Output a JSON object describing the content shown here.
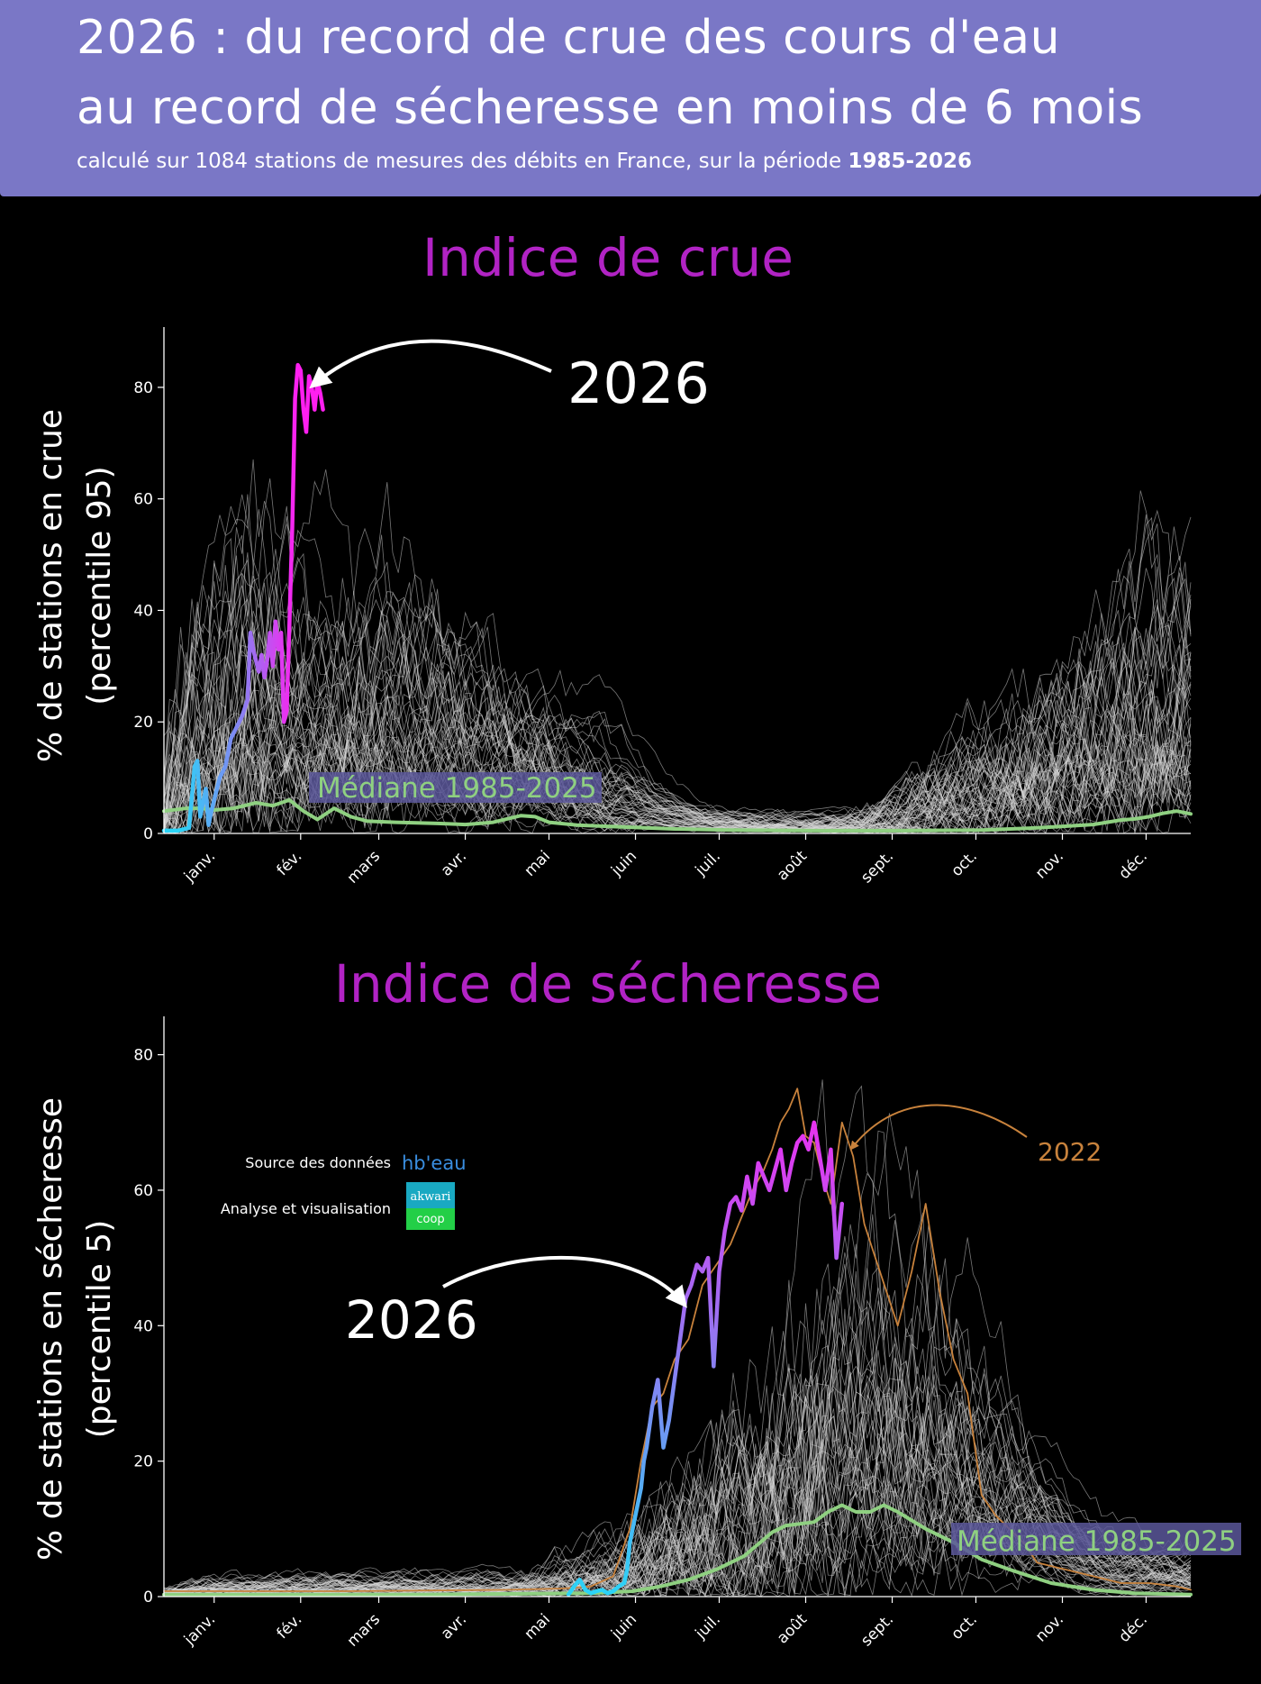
{
  "header": {
    "title_line1": "2026 : du record de crue des cours d'eau",
    "title_line2": "au record de sécheresse en moins de 6 mois",
    "subtitle_prefix": "calculé sur 1084 stations de mesures des débits en France, sur la période ",
    "subtitle_period": "1985-2026"
  },
  "credits": {
    "source_label": "Source des données",
    "source_logo": "hb'eau",
    "analysis_label": "Analyse et visualisation",
    "analysis_logo_top": "akwari",
    "analysis_logo_bottom": "coop"
  },
  "colors": {
    "background": "#000000",
    "header": "#7a77c6",
    "panel_title": "#b123c4",
    "historical_years": "#d9d9d9",
    "median": "#8fd081",
    "year_2022": "#c8823c",
    "year_2026_start": "#2ad4f7",
    "year_2026_mid": "#8e7cf2",
    "year_2026_end": "#ff1ff0"
  },
  "chart_data": [
    {
      "type": "line",
      "title": "Indice de crue",
      "ylabel_line1": "% de stations en crue",
      "ylabel_line2": "(percentile 95)",
      "x_unit": "day of year",
      "months": [
        "janv.",
        "févr.",
        "mars",
        "avr.",
        "mai",
        "juin",
        "juil.",
        "août",
        "sept.",
        "oct.",
        "nov.",
        "déc."
      ],
      "month_tick_labels": [
        "janv.",
        "fév.",
        "mars",
        "avr.",
        "mai",
        "juin",
        "juil.",
        "août",
        "sept.",
        "oct.",
        "nov.",
        "déc."
      ],
      "month_tick_days": [
        15,
        46,
        74,
        105,
        135,
        166,
        196,
        227,
        258,
        288,
        319,
        349
      ],
      "xlim": [
        -3,
        365
      ],
      "ylim": [
        0,
        90
      ],
      "yticks": [
        0,
        20,
        40,
        60,
        80
      ],
      "grid": false,
      "series": [
        {
          "name": "Médiane 1985-2025",
          "role": "median",
          "x": [
            -3,
            5,
            10,
            15,
            22,
            30,
            36,
            42,
            47,
            52,
            58,
            64,
            70,
            80,
            95,
            105,
            115,
            125,
            130,
            135,
            145,
            160,
            180,
            200,
            230,
            260,
            290,
            310,
            320,
            330,
            340,
            345,
            350,
            355,
            360,
            365
          ],
          "y": [
            4,
            4.5,
            4.5,
            4.2,
            4.5,
            5.5,
            5.0,
            6.0,
            4.0,
            2.5,
            4.5,
            3.0,
            2.2,
            2.0,
            1.8,
            1.6,
            2.0,
            3.2,
            3.0,
            2.0,
            1.5,
            1.2,
            0.8,
            0.6,
            0.5,
            0.5,
            0.6,
            1.0,
            1.3,
            1.6,
            2.4,
            2.6,
            3.0,
            3.6,
            4.0,
            3.5
          ]
        },
        {
          "name": "2026",
          "role": "current",
          "x": [
            -3,
            2,
            6,
            8,
            9,
            10,
            12,
            13,
            14,
            15,
            17,
            19,
            21,
            23,
            25,
            27,
            28,
            29,
            31,
            32,
            33,
            34,
            35,
            36,
            37,
            38,
            39,
            40,
            41,
            42,
            43,
            44,
            45,
            46,
            47,
            48,
            49,
            50,
            51,
            52,
            53,
            54
          ],
          "y": [
            0.5,
            0.5,
            1.0,
            12.0,
            13.0,
            3.0,
            8.0,
            1.5,
            4.0,
            6.0,
            10.0,
            12.0,
            17.0,
            19.0,
            21.0,
            24.0,
            36.0,
            33.0,
            29.0,
            32.0,
            28.0,
            31.0,
            36.0,
            30.0,
            38.0,
            33.0,
            36.0,
            20.0,
            22.0,
            38.0,
            55.0,
            78.0,
            84.0,
            83.0,
            76.0,
            72.0,
            82.0,
            80.0,
            76.0,
            81.0,
            79.0,
            76.0
          ]
        }
      ],
      "annotations": [
        {
          "text": "2026"
        },
        {
          "text": "Médiane 1985-2025"
        }
      ]
    },
    {
      "type": "line",
      "title": "Indice de sécheresse",
      "ylabel_line1": "% de stations en sécheresse",
      "ylabel_line2": "(percentile 5)",
      "x_unit": "day of year",
      "months": [
        "janv.",
        "févr.",
        "mars",
        "avr.",
        "mai",
        "juin",
        "juil.",
        "août",
        "sept.",
        "oct.",
        "nov.",
        "déc."
      ],
      "month_tick_labels": [
        "janv.",
        "fév.",
        "mars",
        "avr.",
        "mai",
        "juin",
        "juil.",
        "août",
        "sept.",
        "oct.",
        "nov.",
        "déc."
      ],
      "month_tick_days": [
        15,
        46,
        74,
        105,
        135,
        166,
        196,
        227,
        258,
        288,
        319,
        349
      ],
      "xlim": [
        -3,
        365
      ],
      "ylim": [
        0,
        85
      ],
      "yticks": [
        0,
        20,
        40,
        60,
        80
      ],
      "grid": false,
      "series": [
        {
          "name": "Médiane 1985-2025",
          "role": "median",
          "x": [
            -3,
            30,
            60,
            90,
            120,
            150,
            165,
            175,
            185,
            195,
            205,
            215,
            220,
            230,
            235,
            240,
            245,
            250,
            255,
            260,
            270,
            280,
            290,
            300,
            315,
            330,
            345,
            365
          ],
          "y": [
            0.3,
            0.3,
            0.3,
            0.3,
            0.4,
            0.5,
            0.8,
            1.5,
            2.5,
            4.0,
            6.0,
            9.5,
            10.5,
            11.0,
            12.5,
            13.5,
            12.5,
            12.5,
            13.5,
            12.5,
            10.0,
            8.0,
            5.5,
            4.0,
            2.0,
            1.0,
            0.5,
            0.3
          ]
        },
        {
          "name": "2022",
          "role": "highlight",
          "x": [
            -3,
            60,
            120,
            140,
            150,
            158,
            164,
            168,
            172,
            176,
            180,
            185,
            190,
            195,
            200,
            205,
            208,
            212,
            215,
            218,
            221,
            224,
            227,
            230,
            233,
            236,
            240,
            244,
            248,
            252,
            256,
            260,
            265,
            270,
            275,
            280,
            285,
            290,
            295,
            300,
            305,
            310,
            320,
            330,
            340,
            350,
            360,
            365
          ],
          "y": [
            0.8,
            0.8,
            1.0,
            1.2,
            1.5,
            3.0,
            10.0,
            20.0,
            28.0,
            30.0,
            35.0,
            38.0,
            46.0,
            49.0,
            52.0,
            57.0,
            60.0,
            63.0,
            66.0,
            70.0,
            72.0,
            75.0,
            68.0,
            67.0,
            62.0,
            58.0,
            70.0,
            65.0,
            55.0,
            50.0,
            45.0,
            40.0,
            48.0,
            58.0,
            45.0,
            35.0,
            30.0,
            15.0,
            12.0,
            10.0,
            8.0,
            5.0,
            4.0,
            3.0,
            2.0,
            2.0,
            1.5,
            1.0
          ]
        },
        {
          "name": "2026",
          "role": "current",
          "x": [
            142,
            144,
            146,
            148,
            150,
            152,
            154,
            156,
            158,
            160,
            162,
            163,
            164,
            166,
            168,
            169,
            170,
            172,
            174,
            176,
            178,
            180,
            182,
            184,
            186,
            188,
            190,
            192,
            194,
            196,
            198,
            200,
            202,
            204,
            206,
            208,
            210,
            212,
            214,
            216,
            218,
            220,
            222,
            224,
            226,
            228,
            230,
            232,
            234,
            236,
            238,
            240
          ],
          "y": [
            0.3,
            1.5,
            2.5,
            1.0,
            0.5,
            0.8,
            1.0,
            0.5,
            0.8,
            1.5,
            2.0,
            4.0,
            8.0,
            12.0,
            16.0,
            20.0,
            22.0,
            28.0,
            32.0,
            22.0,
            26.0,
            32.0,
            38.0,
            44.0,
            46.0,
            49.0,
            48.0,
            50.0,
            34.0,
            48.0,
            54.0,
            58.0,
            59.0,
            57.0,
            62.0,
            58.0,
            64.0,
            62.0,
            60.0,
            63.0,
            66.0,
            60.0,
            64.0,
            67.0,
            68.0,
            66.0,
            70.0,
            65.0,
            60.0,
            66.0,
            50.0,
            58.0
          ]
        }
      ],
      "annotations": [
        {
          "text": "2026"
        },
        {
          "text": "2022"
        },
        {
          "text": "Médiane 1985-2025"
        }
      ]
    }
  ]
}
